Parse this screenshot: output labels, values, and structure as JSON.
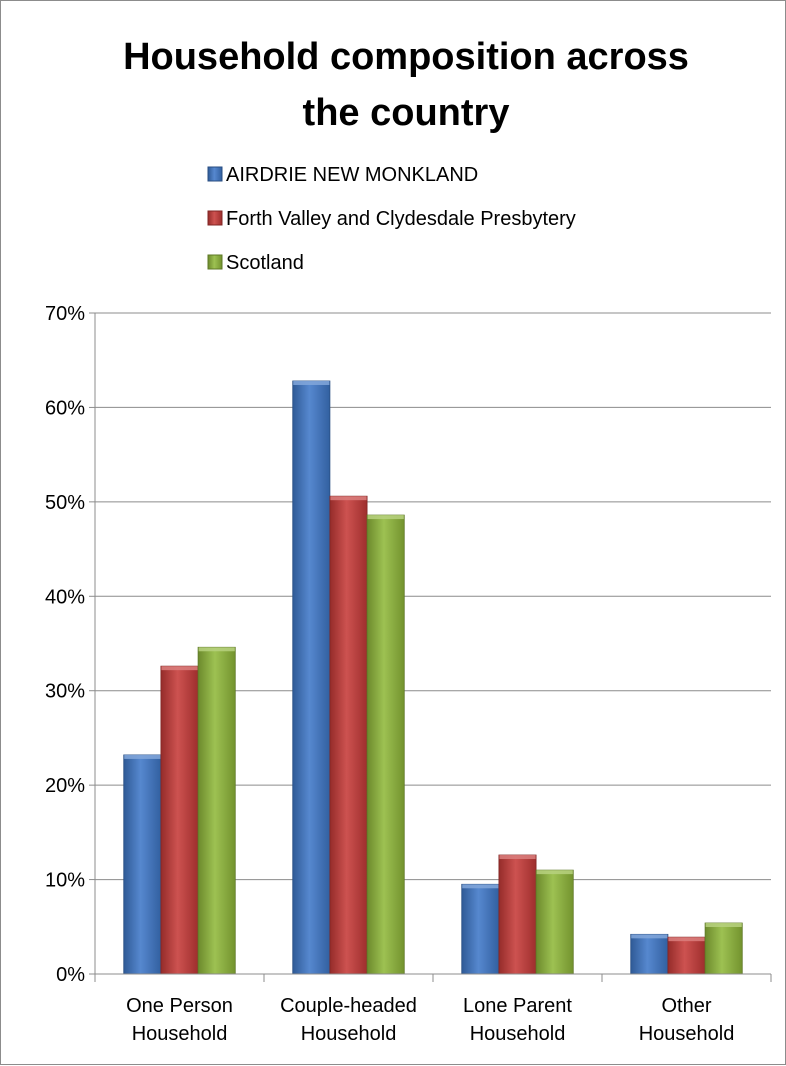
{
  "chart_data": {
    "type": "bar",
    "title_lines": [
      "Household composition across",
      "the country"
    ],
    "xlabel": "",
    "ylabel": "",
    "categories": [
      [
        "One Person",
        "Household"
      ],
      [
        "Couple-headed",
        "Household"
      ],
      [
        "Lone Parent",
        "Household"
      ],
      [
        "Other",
        "Household"
      ]
    ],
    "series": [
      {
        "name": "AIRDRIE NEW MONKLAND",
        "color": "#3f78c8",
        "values": [
          23.2,
          62.8,
          9.5,
          4.2
        ]
      },
      {
        "name": "Forth Valley and Clydesdale Presbytery",
        "color": "#c63a38",
        "values": [
          32.6,
          50.6,
          12.6,
          3.9
        ]
      },
      {
        "name": "Scotland",
        "color": "#90b83a",
        "values": [
          34.6,
          48.6,
          11.0,
          5.4
        ]
      }
    ],
    "ylim": [
      0,
      70
    ],
    "yticks": [
      "0%",
      "10%",
      "20%",
      "30%",
      "40%",
      "50%",
      "60%",
      "70%"
    ],
    "grid": true,
    "legend_position": "top"
  }
}
